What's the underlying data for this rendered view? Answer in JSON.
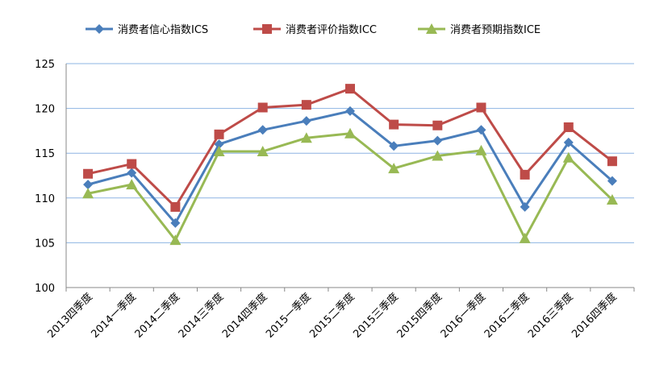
{
  "chart_data": {
    "type": "line",
    "title": "",
    "xlabel": "",
    "ylabel": "",
    "ylim": [
      100,
      125
    ],
    "yticks": [
      100,
      105,
      110,
      115,
      120,
      125
    ],
    "grid": true,
    "legend_position": "top",
    "categories": [
      "2013四季度",
      "2014一季度",
      "2014二季度",
      "2014三季度",
      "2014四季度",
      "2015一季度",
      "2015二季度",
      "2015三季度",
      "2015四季度",
      "2016一季度",
      "2016二季度",
      "2016三季度",
      "2016四季度"
    ],
    "series": [
      {
        "name": "消费者信心指数ICS",
        "color": "#4a7ebb",
        "marker": "diamond",
        "values": [
          111.5,
          112.8,
          107.2,
          116.0,
          117.6,
          118.6,
          119.7,
          115.8,
          116.4,
          117.6,
          109.0,
          116.2,
          111.9
        ]
      },
      {
        "name": "消费者评价指数ICC",
        "color": "#be4b48",
        "marker": "square",
        "values": [
          112.7,
          113.8,
          109.0,
          117.1,
          120.1,
          120.4,
          122.2,
          118.2,
          118.1,
          120.1,
          112.6,
          117.9,
          114.1
        ]
      },
      {
        "name": "消费者预期指数ICE",
        "color": "#98b954",
        "marker": "triangle",
        "values": [
          110.5,
          111.5,
          105.3,
          115.2,
          115.2,
          116.7,
          117.2,
          113.3,
          114.7,
          115.3,
          105.5,
          114.5,
          109.8
        ]
      }
    ]
  }
}
